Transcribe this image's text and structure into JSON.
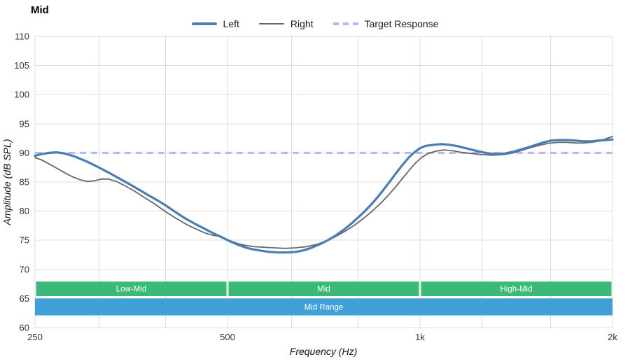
{
  "title": "Mid",
  "legend": [
    {
      "label": "Left",
      "color": "#4a7cb5",
      "thick": true
    },
    {
      "label": "Right",
      "color": "#666666"
    },
    {
      "label": "Target Response",
      "color": "#b4b8f2",
      "dash": true
    }
  ],
  "chart_data": {
    "type": "line",
    "title": "Mid",
    "xlabel": "Frequency (Hz)",
    "ylabel": "Amplitude (dB SPL)",
    "x_scale": "log",
    "x_range": [
      250,
      2000
    ],
    "y_range": [
      60,
      110
    ],
    "x_ticks": [
      {
        "value": 250,
        "label": "250"
      },
      {
        "value": 500,
        "label": "500"
      },
      {
        "value": 1000,
        "label": "1k"
      },
      {
        "value": 2000,
        "label": "2k"
      }
    ],
    "x_gridlines": [
      250,
      315,
      400,
      500,
      630,
      800,
      1000,
      1250,
      1600,
      2000
    ],
    "y_ticks": [
      60,
      65,
      70,
      75,
      80,
      85,
      90,
      95,
      100,
      105,
      110
    ],
    "grid": true,
    "legend_position": "top-center",
    "target_response": {
      "value": 90,
      "color": "#b4b8f2"
    },
    "bands": [
      {
        "label": "Low-Mid",
        "x1": 250,
        "x2": 500,
        "y1": 65.4,
        "y2": 67.9,
        "color": "#3cb878",
        "inset": true
      },
      {
        "label": "Mid",
        "x1": 500,
        "x2": 1000,
        "y1": 65.4,
        "y2": 67.9,
        "color": "#3cb878",
        "inset": true
      },
      {
        "label": "High-Mid",
        "x1": 1000,
        "x2": 2000,
        "y1": 65.4,
        "y2": 67.9,
        "color": "#3cb878",
        "inset": true
      },
      {
        "label": "Mid Range",
        "x1": 250,
        "x2": 2000,
        "y1": 62.1,
        "y2": 65.0,
        "color": "#3f9fd8",
        "inset": false
      }
    ],
    "series": [
      {
        "name": "Left",
        "color": "#4a7cb5",
        "width": 3.2,
        "points": [
          [
            250,
            89.5
          ],
          [
            256,
            89.8
          ],
          [
            263,
            90.0
          ],
          [
            270,
            90.1
          ],
          [
            278,
            89.9
          ],
          [
            288,
            89.4
          ],
          [
            300,
            88.6
          ],
          [
            312,
            87.7
          ],
          [
            325,
            86.7
          ],
          [
            340,
            85.5
          ],
          [
            357,
            84.2
          ],
          [
            375,
            82.8
          ],
          [
            388,
            81.9
          ],
          [
            400,
            81.0
          ],
          [
            415,
            79.8
          ],
          [
            430,
            78.7
          ],
          [
            445,
            77.8
          ],
          [
            460,
            77.0
          ],
          [
            475,
            76.2
          ],
          [
            490,
            75.5
          ],
          [
            505,
            74.8
          ],
          [
            520,
            74.2
          ],
          [
            535,
            73.7
          ],
          [
            550,
            73.4
          ],
          [
            565,
            73.2
          ],
          [
            580,
            73.0
          ],
          [
            600,
            72.9
          ],
          [
            620,
            72.9
          ],
          [
            640,
            73.0
          ],
          [
            660,
            73.3
          ],
          [
            680,
            73.8
          ],
          [
            700,
            74.4
          ],
          [
            720,
            75.1
          ],
          [
            740,
            75.9
          ],
          [
            760,
            76.8
          ],
          [
            780,
            77.8
          ],
          [
            800,
            78.9
          ],
          [
            820,
            80.0
          ],
          [
            840,
            81.2
          ],
          [
            860,
            82.5
          ],
          [
            880,
            83.9
          ],
          [
            900,
            85.3
          ],
          [
            920,
            86.7
          ],
          [
            940,
            88.0
          ],
          [
            960,
            89.2
          ],
          [
            980,
            90.1
          ],
          [
            1000,
            90.8
          ],
          [
            1020,
            91.2
          ],
          [
            1050,
            91.4
          ],
          [
            1080,
            91.5
          ],
          [
            1110,
            91.4
          ],
          [
            1140,
            91.2
          ],
          [
            1170,
            90.9
          ],
          [
            1200,
            90.6
          ],
          [
            1240,
            90.2
          ],
          [
            1280,
            89.9
          ],
          [
            1320,
            89.8
          ],
          [
            1360,
            89.9
          ],
          [
            1400,
            90.2
          ],
          [
            1440,
            90.6
          ],
          [
            1480,
            91.0
          ],
          [
            1520,
            91.4
          ],
          [
            1560,
            91.8
          ],
          [
            1600,
            92.1
          ],
          [
            1650,
            92.2
          ],
          [
            1700,
            92.2
          ],
          [
            1750,
            92.1
          ],
          [
            1800,
            92.0
          ],
          [
            1850,
            92.0
          ],
          [
            1900,
            92.1
          ],
          [
            1950,
            92.2
          ],
          [
            2000,
            92.3
          ]
        ]
      },
      {
        "name": "Right",
        "color": "#666666",
        "width": 1.8,
        "points": [
          [
            250,
            89.2
          ],
          [
            256,
            88.8
          ],
          [
            262,
            88.2
          ],
          [
            270,
            87.4
          ],
          [
            278,
            86.6
          ],
          [
            286,
            85.9
          ],
          [
            294,
            85.4
          ],
          [
            302,
            85.1
          ],
          [
            310,
            85.2
          ],
          [
            318,
            85.5
          ],
          [
            326,
            85.5
          ],
          [
            335,
            85.1
          ],
          [
            345,
            84.4
          ],
          [
            357,
            83.5
          ],
          [
            370,
            82.4
          ],
          [
            385,
            81.2
          ],
          [
            400,
            79.9
          ],
          [
            415,
            78.8
          ],
          [
            430,
            77.8
          ],
          [
            445,
            77.0
          ],
          [
            460,
            76.3
          ],
          [
            472,
            75.9
          ],
          [
            484,
            75.7
          ],
          [
            496,
            75.3
          ],
          [
            508,
            74.8
          ],
          [
            520,
            74.4
          ],
          [
            535,
            74.1
          ],
          [
            550,
            73.9
          ],
          [
            570,
            73.8
          ],
          [
            590,
            73.7
          ],
          [
            615,
            73.6
          ],
          [
            640,
            73.7
          ],
          [
            665,
            73.9
          ],
          [
            690,
            74.3
          ],
          [
            715,
            74.9
          ],
          [
            740,
            75.7
          ],
          [
            765,
            76.6
          ],
          [
            790,
            77.6
          ],
          [
            815,
            78.7
          ],
          [
            840,
            79.9
          ],
          [
            865,
            81.2
          ],
          [
            890,
            82.6
          ],
          [
            915,
            84.1
          ],
          [
            940,
            85.7
          ],
          [
            965,
            87.2
          ],
          [
            985,
            88.3
          ],
          [
            1005,
            89.2
          ],
          [
            1030,
            89.9
          ],
          [
            1060,
            90.3
          ],
          [
            1090,
            90.5
          ],
          [
            1120,
            90.4
          ],
          [
            1160,
            90.1
          ],
          [
            1200,
            89.9
          ],
          [
            1250,
            89.7
          ],
          [
            1300,
            89.6
          ],
          [
            1350,
            89.7
          ],
          [
            1400,
            90.0
          ],
          [
            1450,
            90.5
          ],
          [
            1500,
            91.0
          ],
          [
            1550,
            91.4
          ],
          [
            1600,
            91.7
          ],
          [
            1650,
            91.8
          ],
          [
            1700,
            91.8
          ],
          [
            1750,
            91.7
          ],
          [
            1800,
            91.7
          ],
          [
            1850,
            91.8
          ],
          [
            1900,
            92.0
          ],
          [
            1950,
            92.4
          ],
          [
            2000,
            92.8
          ]
        ]
      }
    ]
  }
}
